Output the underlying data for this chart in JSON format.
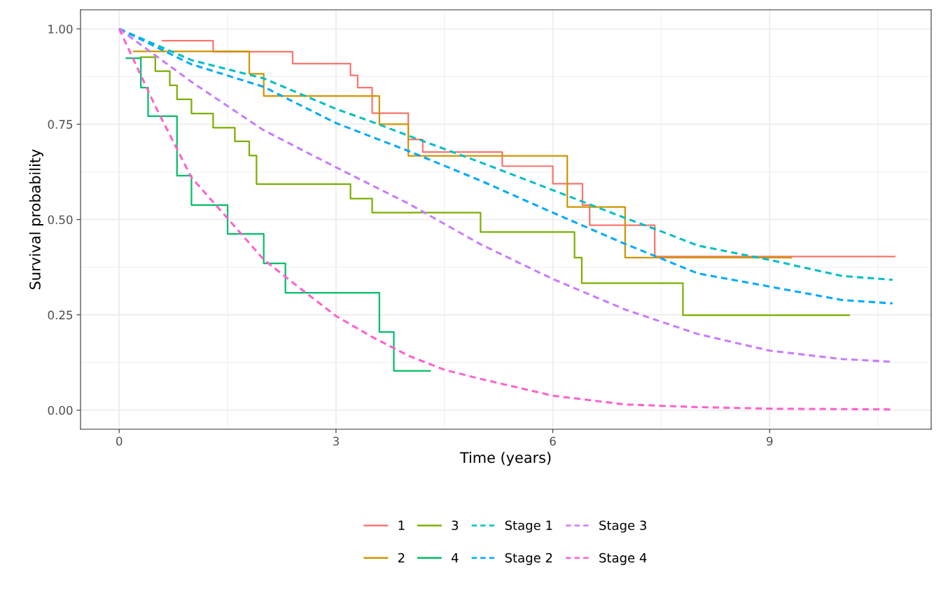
{
  "chart_data": {
    "type": "step",
    "xlabel": "Time (years)",
    "ylabel": "Survival probability",
    "xlim": [
      -0.535,
      11.235
    ],
    "ylim": [
      -0.05,
      1.05
    ],
    "xticks": [
      0,
      3,
      6,
      9
    ],
    "yticks": [
      {
        "value": 0,
        "label": "0.00"
      },
      {
        "value": 0.25,
        "label": "0.25"
      },
      {
        "value": 0.5,
        "label": "0.50"
      },
      {
        "value": 0.75,
        "label": "0.75"
      },
      {
        "value": 1,
        "label": "1.00"
      }
    ],
    "grid": true,
    "legend": "bottom",
    "series": [
      {
        "name": "1",
        "line_style": "solid",
        "color": "#f8766d",
        "x": [
          0.6,
          1.3,
          2.4,
          3.2,
          3.3,
          3.5,
          4.0,
          4.2,
          5.3,
          6.0,
          6.41,
          6.51,
          7.41,
          10.73
        ],
        "values": [
          0.969,
          0.94,
          0.909,
          0.878,
          0.846,
          0.779,
          0.71,
          0.677,
          0.64,
          0.594,
          0.538,
          0.485,
          0.403,
          0.403
        ]
      },
      {
        "name": "2",
        "line_style": "solid",
        "color": "#cd9600",
        "x": [
          0.2,
          1.8,
          2.0,
          3.6,
          4.0,
          6.2,
          7.0,
          9.3
        ],
        "values": [
          0.941,
          0.882,
          0.824,
          0.75,
          0.667,
          0.533,
          0.4,
          0.4
        ]
      },
      {
        "name": "3",
        "line_style": "solid",
        "color": "#7cae00",
        "x": [
          0.3,
          0.5,
          0.7,
          0.8,
          1.0,
          1.3,
          1.6,
          1.8,
          1.9,
          3.2,
          3.5,
          5.0,
          6.3,
          6.4,
          7.8,
          10.1
        ],
        "values": [
          0.926,
          0.889,
          0.852,
          0.815,
          0.778,
          0.741,
          0.705,
          0.668,
          0.593,
          0.555,
          0.518,
          0.467,
          0.4,
          0.333,
          0.249,
          0.249
        ]
      },
      {
        "name": "4",
        "line_style": "solid",
        "color": "#00be67",
        "x": [
          0.1,
          0.3,
          0.4,
          0.8,
          1.0,
          1.5,
          2.0,
          2.3,
          3.6,
          3.8,
          4.3
        ],
        "values": [
          0.923,
          0.846,
          0.771,
          0.615,
          0.538,
          0.462,
          0.385,
          0.308,
          0.205,
          0.103,
          0.103
        ]
      },
      {
        "name": "Stage 1",
        "type": "line",
        "line_style": "dashed",
        "color": "#00bfc4",
        "x": [
          0,
          1,
          2,
          3,
          3.5,
          4,
          5,
          6,
          7,
          7.5,
          8,
          9,
          10,
          10.7
        ],
        "values": [
          1,
          0.918,
          0.87,
          0.79,
          0.756,
          0.72,
          0.65,
          0.577,
          0.504,
          0.469,
          0.432,
          0.394,
          0.352,
          0.342
        ]
      },
      {
        "name": "Stage 2",
        "type": "line",
        "line_style": "dashed",
        "color": "#00a9ff",
        "x": [
          0,
          1,
          2,
          3,
          4,
          5,
          6,
          7,
          8,
          9,
          10,
          10.7
        ],
        "values": [
          1,
          0.907,
          0.848,
          0.753,
          0.68,
          0.602,
          0.518,
          0.436,
          0.359,
          0.324,
          0.289,
          0.28
        ]
      },
      {
        "name": "Stage 3",
        "type": "line",
        "line_style": "dashed",
        "color": "#c77cff",
        "x": [
          0,
          1,
          2,
          3,
          4,
          5,
          6,
          7,
          8,
          9,
          10,
          10.7
        ],
        "values": [
          1,
          0.861,
          0.734,
          0.637,
          0.542,
          0.435,
          0.344,
          0.264,
          0.2,
          0.156,
          0.134,
          0.127
        ]
      },
      {
        "name": "Stage 4",
        "type": "line",
        "line_style": "dashed",
        "color": "#ff61cc",
        "x": [
          0,
          0.5,
          1,
          1.5,
          2,
          2.5,
          3,
          3.5,
          4,
          4.5,
          5,
          6,
          7,
          8,
          9,
          10.7
        ],
        "values": [
          1,
          0.797,
          0.61,
          0.503,
          0.395,
          0.32,
          0.247,
          0.192,
          0.143,
          0.106,
          0.082,
          0.038,
          0.015,
          0.008,
          0.004,
          0.002
        ]
      }
    ]
  }
}
